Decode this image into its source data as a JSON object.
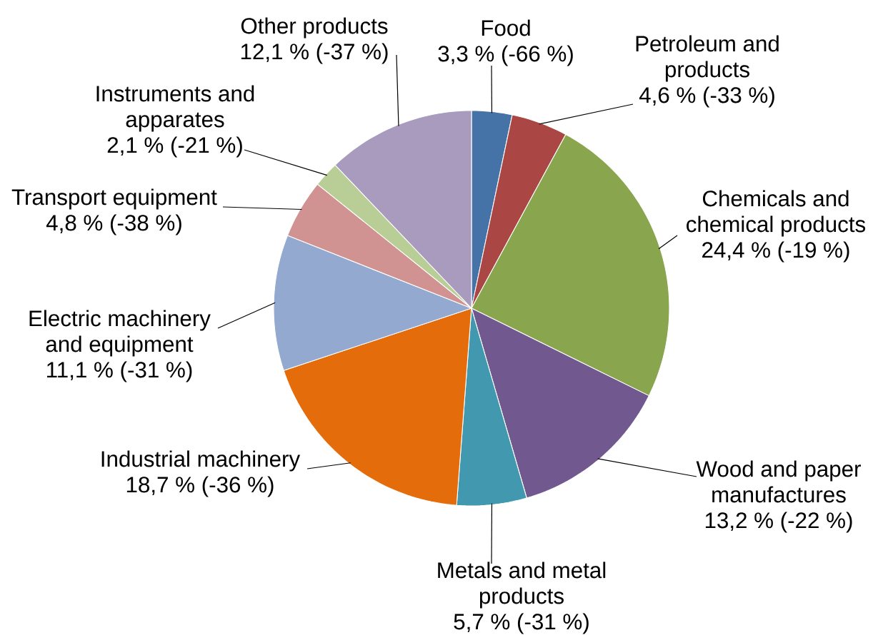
{
  "chart_data": {
    "type": "pie",
    "categories": [
      "Food",
      "Petroleum and products",
      "Chemicals and chemical products",
      "Wood and paper manufactures",
      "Metals and metal products",
      "Industrial machinery",
      "Electric machinery and equipment",
      "Transport equipment",
      "Instruments and apparates",
      "Other products"
    ],
    "values": [
      3.3,
      4.6,
      24.4,
      13.2,
      5.7,
      18.7,
      11.1,
      4.8,
      2.1,
      12.1
    ],
    "colors": [
      "#4572a7",
      "#aa4643",
      "#89a54e",
      "#71588f",
      "#4198af",
      "#e46c0a",
      "#93a9cf",
      "#d19392",
      "#b9cd96",
      "#a99bbd"
    ],
    "value_labels": [
      "3,3 % (-66 %)",
      "4,6 % (-33 %)",
      "24,4 % (-19 %)",
      "13,2 % (-22 %)",
      "5,7 % (-31 %)",
      "18,7 % (-36 %)",
      "11,1 % (-31 %)",
      "4,8 % (-38 %)",
      "2,1 % (-21 %)",
      "12,1 % (-37 %)"
    ]
  }
}
